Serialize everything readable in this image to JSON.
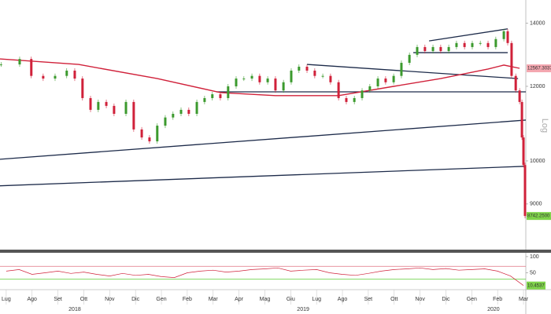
{
  "chart_data": {
    "type": "candlestick",
    "ylabel": "Log",
    "log_scale": true,
    "xlim": [
      -0.24,
      20.09
    ],
    "ylim": [
      8050,
      14820
    ],
    "yticks": [
      9000,
      10000,
      12000,
      14000
    ],
    "xticks": [
      {
        "value": 0,
        "label": "Lug"
      },
      {
        "value": 1,
        "label": "Ago"
      },
      {
        "value": 2,
        "label": "Set"
      },
      {
        "value": 3,
        "label": "Ott"
      },
      {
        "value": 4,
        "label": "Nov"
      },
      {
        "value": 5,
        "label": "Dic"
      },
      {
        "value": 6,
        "label": "Gen"
      },
      {
        "value": 7,
        "label": "Feb"
      },
      {
        "value": 8,
        "label": "Mar"
      },
      {
        "value": 9,
        "label": "Apr"
      },
      {
        "value": 10,
        "label": "Mag"
      },
      {
        "value": 11,
        "label": "Giu"
      },
      {
        "value": 12,
        "label": "Lug"
      },
      {
        "value": 13,
        "label": "Ago"
      },
      {
        "value": 14,
        "label": "Set"
      },
      {
        "value": 15,
        "label": "Ott"
      },
      {
        "value": 16,
        "label": "Nov"
      },
      {
        "value": 17,
        "label": "Dic"
      },
      {
        "value": 18,
        "label": "Gen"
      },
      {
        "value": 19,
        "label": "Feb"
      },
      {
        "value": 20,
        "label": "Mar"
      }
    ],
    "year_ticks": [
      {
        "value": 2.65,
        "label": "2018"
      },
      {
        "value": 11.48,
        "label": "2019"
      },
      {
        "value": 18.84,
        "label": "2020"
      }
    ],
    "price": {
      "up_color": "#3c9a2e",
      "down_color": "#d0213a",
      "x": [
        -0.2,
        0.52,
        0.97,
        1.43,
        1.89,
        2.34,
        2.65,
        2.95,
        3.26,
        3.56,
        3.87,
        4.17,
        4.63,
        4.93,
        5.24,
        5.54,
        5.84,
        6.15,
        6.45,
        6.76,
        7.06,
        7.37,
        7.67,
        7.97,
        8.28,
        8.58,
        8.89,
        9.19,
        9.5,
        9.8,
        10.11,
        10.41,
        10.72,
        11.02,
        11.32,
        11.63,
        11.93,
        12.24,
        12.54,
        12.85,
        13.15,
        13.46,
        13.76,
        14.06,
        14.37,
        14.67,
        14.98,
        15.28,
        15.59,
        15.89,
        16.19,
        16.5,
        16.8,
        17.11,
        17.41,
        17.72,
        18.02,
        18.33,
        18.63,
        18.93,
        19.24,
        19.39,
        19.54,
        19.7,
        19.85,
        19.94,
        20.0,
        20.06
      ],
      "close": [
        12660,
        12830,
        12310,
        12230,
        12310,
        12470,
        12230,
        11660,
        11330,
        11550,
        11440,
        11220,
        11550,
        10800,
        10590,
        10490,
        10900,
        11120,
        11220,
        11330,
        11220,
        11550,
        11660,
        11770,
        11660,
        12000,
        12230,
        12230,
        12310,
        12120,
        12230,
        11880,
        12120,
        12470,
        12590,
        12470,
        12310,
        12310,
        12120,
        11660,
        11550,
        11660,
        11880,
        12000,
        12230,
        12120,
        12310,
        12710,
        12960,
        13210,
        13080,
        13210,
        13080,
        13210,
        13340,
        13210,
        13340,
        13340,
        13210,
        13470,
        13730,
        13340,
        12310,
        11880,
        11550,
        10590,
        9900,
        8740
      ],
      "last_value_label": "8742.2500",
      "label_color": "#7fd34a"
    },
    "moving_average": {
      "color": "#d0213a",
      "x": [
        -0.24,
        2.8,
        5.84,
        8.28,
        10.41,
        12.85,
        14.98,
        16.8,
        18.63,
        19.24,
        19.85
      ],
      "values": [
        12830,
        12660,
        12230,
        11820,
        11730,
        11730,
        12000,
        12230,
        12520,
        12640,
        12540
      ],
      "value_label": "12567.3037",
      "label_color": "#f4a7b0"
    },
    "trendlines": {
      "color": "#1d2b4a",
      "lines": [
        {
          "x": [
            -0.24,
            20.09
          ],
          "values": [
            9410,
            9870
          ]
        },
        {
          "x": [
            -0.24,
            20.09
          ],
          "values": [
            10040,
            11050
          ]
        },
        {
          "x": [
            11.63,
            19.79
          ],
          "values": [
            12660,
            12230
          ]
        },
        {
          "x": [
            8.13,
            20.09
          ],
          "values": [
            11840,
            11840
          ]
        },
        {
          "x": [
            15.74,
            19.39
          ],
          "values": [
            13030,
            13030
          ]
        },
        {
          "x": [
            16.35,
            19.39
          ],
          "values": [
            13410,
            13810
          ]
        }
      ]
    },
    "rsi": {
      "color": "#d0213a",
      "ylim": [
        0,
        112
      ],
      "yticks": [
        50,
        100
      ],
      "levels": [
        {
          "value": 30,
          "color": "#6fd34a"
        },
        {
          "value": 70,
          "color": "#e07080"
        }
      ],
      "x": [
        0,
        0.5,
        1,
        1.5,
        2,
        2.5,
        3,
        3.5,
        4,
        4.5,
        5,
        5.5,
        6,
        6.5,
        7,
        7.5,
        8,
        8.5,
        9,
        9.5,
        10,
        10.5,
        11,
        11.5,
        12,
        12.5,
        13,
        13.5,
        14,
        14.5,
        15,
        15.5,
        16,
        16.5,
        17,
        17.5,
        18,
        18.5,
        19,
        19.5,
        20
      ],
      "values": [
        55,
        60,
        45,
        50,
        55,
        48,
        52,
        45,
        40,
        48,
        42,
        45,
        38,
        35,
        50,
        55,
        58,
        52,
        55,
        60,
        62,
        65,
        55,
        58,
        60,
        50,
        45,
        42,
        48,
        55,
        60,
        62,
        65,
        60,
        63,
        58,
        60,
        62,
        55,
        40,
        10.4537
      ],
      "value_label": "10.4537",
      "label_color": "#7fd34a"
    }
  }
}
